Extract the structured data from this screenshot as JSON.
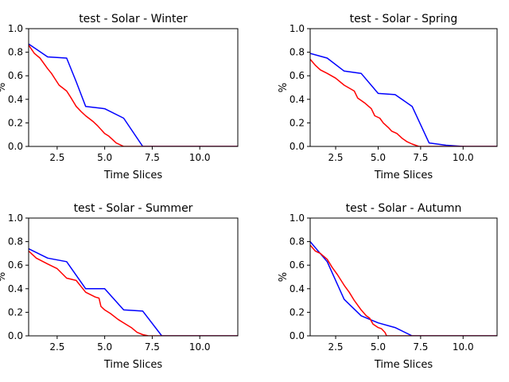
{
  "chart_data": [
    {
      "type": "line",
      "title": "test - Solar - Winter",
      "xlabel": "Time Slices",
      "ylabel": "%",
      "xlim": [
        1,
        12
      ],
      "ylim": [
        0,
        1
      ],
      "xticks": [
        "2.5",
        "5.0",
        "7.5",
        "10.0"
      ],
      "yticks": [
        "0.0",
        "0.2",
        "0.4",
        "0.6",
        "0.8",
        "1.0"
      ],
      "grid": false,
      "series": [
        {
          "color": "#0000ff",
          "points": [
            [
              1,
              0.87
            ],
            [
              2,
              0.76
            ],
            [
              3,
              0.75
            ],
            [
              3.5,
              0.55
            ],
            [
              4,
              0.34
            ],
            [
              5,
              0.32
            ],
            [
              6,
              0.24
            ],
            [
              7,
              0.0
            ],
            [
              12,
              0.0
            ]
          ]
        },
        {
          "color": "#ff0000",
          "points": [
            [
              1,
              0.86
            ],
            [
              1.3,
              0.79
            ],
            [
              1.6,
              0.75
            ],
            [
              2,
              0.66
            ],
            [
              2.2,
              0.62
            ],
            [
              2.4,
              0.57
            ],
            [
              2.6,
              0.52
            ],
            [
              3,
              0.47
            ],
            [
              3.2,
              0.42
            ],
            [
              3.5,
              0.34
            ],
            [
              3.8,
              0.29
            ],
            [
              4,
              0.26
            ],
            [
              4.4,
              0.21
            ],
            [
              4.6,
              0.18
            ],
            [
              5,
              0.11
            ],
            [
              5.2,
              0.09
            ],
            [
              5.4,
              0.06
            ],
            [
              5.6,
              0.03
            ],
            [
              6,
              0.0
            ],
            [
              12,
              0.0
            ]
          ]
        }
      ]
    },
    {
      "type": "line",
      "title": "test - Solar - Spring",
      "xlabel": "Time Slices",
      "ylabel": "%",
      "xlim": [
        1,
        12
      ],
      "ylim": [
        0,
        1
      ],
      "xticks": [
        "2.5",
        "5.0",
        "7.5",
        "10.0"
      ],
      "yticks": [
        "0.0",
        "0.2",
        "0.4",
        "0.6",
        "0.8",
        "1.0"
      ],
      "grid": false,
      "series": [
        {
          "color": "#0000ff",
          "points": [
            [
              1,
              0.79
            ],
            [
              2,
              0.75
            ],
            [
              3,
              0.64
            ],
            [
              4,
              0.62
            ],
            [
              5,
              0.45
            ],
            [
              6,
              0.44
            ],
            [
              7,
              0.34
            ],
            [
              8,
              0.03
            ],
            [
              9,
              0.01
            ],
            [
              10,
              0.0
            ],
            [
              12,
              0.0
            ]
          ]
        },
        {
          "color": "#ff0000",
          "points": [
            [
              1,
              0.74
            ],
            [
              1.3,
              0.69
            ],
            [
              1.6,
              0.65
            ],
            [
              2,
              0.62
            ],
            [
              2.5,
              0.58
            ],
            [
              3,
              0.52
            ],
            [
              3.6,
              0.47
            ],
            [
              3.8,
              0.41
            ],
            [
              4.2,
              0.37
            ],
            [
              4.6,
              0.32
            ],
            [
              4.8,
              0.26
            ],
            [
              5.1,
              0.24
            ],
            [
              5.3,
              0.2
            ],
            [
              5.6,
              0.16
            ],
            [
              5.8,
              0.13
            ],
            [
              6.1,
              0.11
            ],
            [
              6.4,
              0.07
            ],
            [
              6.7,
              0.04
            ],
            [
              7,
              0.02
            ],
            [
              7.4,
              0.0
            ],
            [
              12,
              0.0
            ]
          ]
        }
      ]
    },
    {
      "type": "line",
      "title": "test - Solar - Summer",
      "xlabel": "Time Slices",
      "ylabel": "%",
      "xlim": [
        1,
        12
      ],
      "ylim": [
        0,
        1
      ],
      "xticks": [
        "2.5",
        "5.0",
        "7.5",
        "10.0"
      ],
      "yticks": [
        "0.0",
        "0.2",
        "0.4",
        "0.6",
        "0.8",
        "1.0"
      ],
      "grid": false,
      "series": [
        {
          "color": "#0000ff",
          "points": [
            [
              1,
              0.74
            ],
            [
              2,
              0.66
            ],
            [
              3,
              0.63
            ],
            [
              4,
              0.4
            ],
            [
              5,
              0.4
            ],
            [
              6,
              0.22
            ],
            [
              7,
              0.21
            ],
            [
              8,
              0.0
            ],
            [
              12,
              0.0
            ]
          ]
        },
        {
          "color": "#ff0000",
          "points": [
            [
              1,
              0.72
            ],
            [
              1.4,
              0.66
            ],
            [
              2,
              0.61
            ],
            [
              2.5,
              0.57
            ],
            [
              3,
              0.49
            ],
            [
              3.5,
              0.47
            ],
            [
              4,
              0.37
            ],
            [
              4.5,
              0.33
            ],
            [
              4.7,
              0.32
            ],
            [
              4.8,
              0.25
            ],
            [
              5,
              0.22
            ],
            [
              5.3,
              0.19
            ],
            [
              5.7,
              0.14
            ],
            [
              6,
              0.11
            ],
            [
              6.4,
              0.07
            ],
            [
              6.7,
              0.03
            ],
            [
              7,
              0.01
            ],
            [
              7.3,
              0.0
            ],
            [
              12,
              0.0
            ]
          ]
        }
      ]
    },
    {
      "type": "line",
      "title": "test - Solar - Autumn",
      "xlabel": "Time Slices",
      "ylabel": "%",
      "xlim": [
        1,
        12
      ],
      "ylim": [
        0,
        1
      ],
      "xticks": [
        "2.5",
        "5.0",
        "7.5",
        "10.0"
      ],
      "yticks": [
        "0.0",
        "0.2",
        "0.4",
        "0.6",
        "0.8",
        "1.0"
      ],
      "grid": false,
      "series": [
        {
          "color": "#0000ff",
          "points": [
            [
              1,
              0.8
            ],
            [
              2,
              0.63
            ],
            [
              3,
              0.31
            ],
            [
              4,
              0.17
            ],
            [
              5,
              0.11
            ],
            [
              6,
              0.07
            ],
            [
              7,
              0.0
            ],
            [
              12,
              0.0
            ]
          ]
        },
        {
          "color": "#ff0000",
          "points": [
            [
              1,
              0.77
            ],
            [
              1.3,
              0.72
            ],
            [
              1.6,
              0.7
            ],
            [
              2,
              0.65
            ],
            [
              2.3,
              0.58
            ],
            [
              2.6,
              0.52
            ],
            [
              3,
              0.43
            ],
            [
              3.3,
              0.37
            ],
            [
              3.6,
              0.3
            ],
            [
              4,
              0.22
            ],
            [
              4.3,
              0.17
            ],
            [
              4.5,
              0.15
            ],
            [
              4.7,
              0.1
            ],
            [
              5,
              0.07
            ],
            [
              5.2,
              0.06
            ],
            [
              5.4,
              0.03
            ],
            [
              5.5,
              0.0
            ],
            [
              12,
              0.0
            ]
          ]
        }
      ]
    }
  ]
}
